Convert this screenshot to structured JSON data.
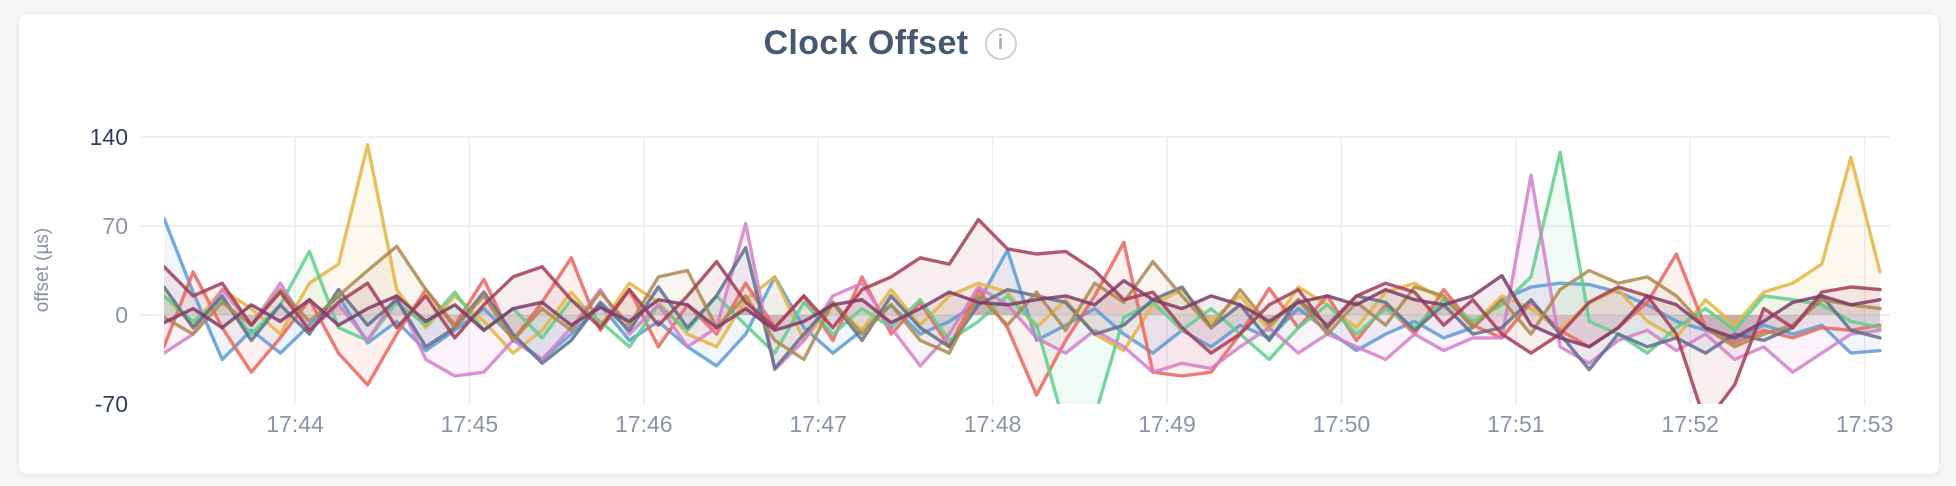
{
  "header": {
    "title": "Clock Offset",
    "info_icon": "i"
  },
  "colors": {
    "page_background": "#f4f5f7",
    "card_background": "#ffffff",
    "card_border": "#e6e8ec",
    "title_text": "#475872",
    "gridline": "#ececef",
    "axis_label_light": "#8a94a6",
    "axis_label_dark": "#2e3e5c"
  },
  "chart_data": {
    "type": "line",
    "title": "Clock Offset",
    "xlabel": "",
    "ylabel": "offset (µs)",
    "ylim": [
      -70,
      140
    ],
    "y_ticks": [
      140,
      70,
      0,
      -70
    ],
    "grid_y_ticks": [
      140,
      70,
      0
    ],
    "x_ticks": [
      "17:44",
      "17:45",
      "17:46",
      "17:47",
      "17:48",
      "17:49",
      "17:50",
      "17:51",
      "17:52",
      "17:53"
    ],
    "x_start": "17:43:15",
    "x_interval_seconds": 10,
    "grid": true,
    "legend_position": "none",
    "series": [
      {
        "name": "series-1",
        "color": "#5C9BD6",
        "values": [
          76,
          18,
          -35,
          -12,
          -30,
          -8,
          15,
          -22,
          -5,
          -28,
          -12,
          5,
          -18,
          -35,
          -15,
          8,
          -20,
          -5,
          -25,
          -40,
          -15,
          30,
          -10,
          -30,
          -12,
          8,
          -15,
          -5,
          10,
          51,
          -20,
          -8,
          5,
          -15,
          -30,
          -12,
          -25,
          -8,
          -18,
          5,
          -12,
          -28,
          -15,
          -5,
          -18,
          -10,
          12,
          22,
          25,
          24,
          18,
          8,
          -5,
          -12,
          -20,
          -8,
          -15,
          -8,
          -30,
          -28
        ]
      },
      {
        "name": "series-2",
        "color": "#E6B440",
        "values": [
          15,
          -8,
          20,
          5,
          -15,
          25,
          40,
          134,
          20,
          -10,
          15,
          -5,
          -30,
          -12,
          18,
          -8,
          25,
          10,
          -15,
          -25,
          12,
          30,
          -20,
          8,
          -12,
          20,
          -8,
          15,
          25,
          18,
          -10,
          12,
          -15,
          -28,
          8,
          20,
          -5,
          15,
          -12,
          22,
          8,
          -10,
          18,
          25,
          12,
          -8,
          15,
          5,
          -12,
          10,
          20,
          -5,
          -18,
          12,
          -8,
          18,
          25,
          40,
          124,
          34
        ]
      },
      {
        "name": "series-3",
        "color": "#EA655D",
        "values": [
          -25,
          34,
          -10,
          -45,
          -18,
          12,
          -30,
          -55,
          -15,
          20,
          -8,
          28,
          -20,
          10,
          45,
          -12,
          20,
          -25,
          8,
          -15,
          25,
          -10,
          15,
          -20,
          30,
          -15,
          10,
          -25,
          20,
          -10,
          -63,
          -20,
          15,
          57,
          -45,
          -48,
          -45,
          -15,
          21,
          -10,
          15,
          -20,
          8,
          -15,
          20,
          -8,
          -18,
          10,
          -12,
          -25,
          -10,
          10,
          48,
          -10,
          -22,
          -12,
          -18,
          -10,
          -12,
          -8
        ]
      },
      {
        "name": "series-4",
        "color": "#5FCE8D",
        "values": [
          15,
          -5,
          12,
          -15,
          8,
          50,
          -10,
          -20,
          10,
          -8,
          18,
          -12,
          5,
          -18,
          12,
          -5,
          -25,
          8,
          -12,
          15,
          -8,
          -30,
          10,
          -15,
          5,
          -10,
          12,
          -20,
          -5,
          15,
          -8,
          -90,
          -80,
          -2,
          10,
          -12,
          5,
          -15,
          -35,
          -10,
          8,
          -15,
          5,
          -10,
          12,
          -5,
          8,
          30,
          128,
          -5,
          -15,
          -30,
          -10,
          5,
          -12,
          15,
          12,
          8,
          -5,
          -10
        ]
      },
      {
        "name": "series-5",
        "color": "#D37FC9",
        "values": [
          -30,
          -15,
          20,
          -8,
          25,
          -12,
          8,
          -20,
          15,
          -35,
          -48,
          -45,
          -20,
          -35,
          -10,
          20,
          -15,
          8,
          -25,
          -10,
          72,
          -43,
          -20,
          15,
          25,
          -10,
          -40,
          -15,
          22,
          8,
          -18,
          -30,
          -12,
          -25,
          -45,
          -38,
          -42,
          -25,
          -10,
          -30,
          -15,
          -25,
          -35,
          -15,
          -28,
          -18,
          -18,
          110,
          -25,
          -38,
          -20,
          -12,
          -28,
          -15,
          -35,
          -25,
          -45,
          -30,
          -15,
          -12
        ]
      },
      {
        "name": "series-6",
        "color": "#5F6E8C",
        "values": [
          22,
          -10,
          15,
          -20,
          8,
          -15,
          20,
          -8,
          12,
          -25,
          -10,
          18,
          -15,
          -38,
          -20,
          10,
          -12,
          22,
          -10,
          15,
          53,
          -42,
          -15,
          10,
          -20,
          15,
          -10,
          -25,
          8,
          20,
          15,
          10,
          -15,
          -8,
          12,
          22,
          -10,
          8,
          -20,
          12,
          -8,
          15,
          10,
          -12,
          8,
          -15,
          -10,
          12,
          -15,
          -43,
          -15,
          -25,
          -18,
          -30,
          -15,
          -20,
          -10,
          15,
          -12,
          -18
        ]
      },
      {
        "name": "series-7",
        "color": "#AC8A4E",
        "values": [
          -2,
          -15,
          10,
          -8,
          20,
          -5,
          15,
          35,
          54,
          20,
          -10,
          15,
          -20,
          5,
          -12,
          18,
          -8,
          30,
          35,
          -10,
          15,
          -20,
          -35,
          10,
          -15,
          8,
          -20,
          -30,
          15,
          -8,
          18,
          -12,
          25,
          10,
          42,
          15,
          -10,
          20,
          -8,
          12,
          -15,
          10,
          -8,
          22,
          15,
          -10,
          12,
          -15,
          20,
          35,
          25,
          30,
          15,
          -10,
          -25,
          -15,
          -8,
          12,
          8,
          5
        ]
      },
      {
        "name": "series-8",
        "color": "#A33D55",
        "values": [
          38,
          15,
          25,
          -8,
          18,
          -12,
          10,
          25,
          -10,
          15,
          -18,
          8,
          30,
          38,
          12,
          -10,
          20,
          -8,
          15,
          42,
          10,
          -10,
          15,
          -10,
          20,
          30,
          45,
          40,
          75,
          52,
          48,
          50,
          35,
          12,
          18,
          -10,
          -30,
          -15,
          8,
          20,
          -10,
          15,
          25,
          18,
          -8,
          12,
          -15,
          -30,
          -15,
          10,
          22,
          15,
          -15,
          -85,
          -55,
          5,
          -10,
          18,
          22,
          20
        ]
      },
      {
        "name": "series-9",
        "color": "#7E3A68",
        "values": [
          -6,
          5,
          -10,
          8,
          -5,
          12,
          -8,
          5,
          15,
          -5,
          8,
          -12,
          5,
          10,
          -8,
          6,
          -5,
          12,
          8,
          -10,
          5,
          -12,
          -5,
          8,
          12,
          -6,
          5,
          18,
          10,
          8,
          12,
          15,
          8,
          27,
          12,
          5,
          15,
          8,
          -5,
          10,
          15,
          8,
          20,
          12,
          8,
          15,
          31,
          -8,
          -18,
          -25,
          -10,
          15,
          8,
          -10,
          -18,
          -5,
          10,
          15,
          8,
          12
        ]
      }
    ]
  }
}
